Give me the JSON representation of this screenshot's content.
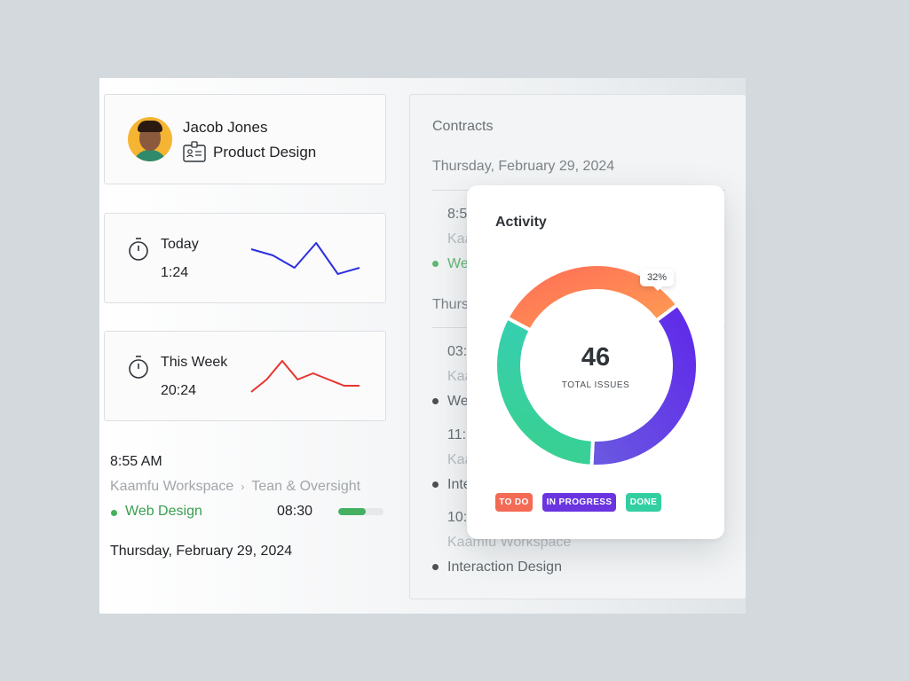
{
  "profile": {
    "name": "Jacob Jones",
    "role": "Product Design"
  },
  "timers": {
    "today": {
      "label": "Today",
      "value": "1:24",
      "color": "#2b2fe0",
      "trend": [
        5,
        4,
        2,
        6,
        1,
        2
      ]
    },
    "week": {
      "label": "This Week",
      "value": "20:24",
      "color": "#e8332e",
      "trend": [
        3,
        5,
        8,
        5,
        6,
        5,
        4,
        4
      ]
    }
  },
  "entry": {
    "time": "8:55 AM",
    "workspace": "Kaamfu Workspace",
    "separator": "›",
    "project": "Tean & Oversight",
    "tag": "Web Design",
    "duration": "08:30",
    "progress_percent": 60,
    "date": "Thursday, February 29, 2024"
  },
  "contracts": {
    "title": "Contracts",
    "date1": "Thursday, February 29, 2024",
    "date2": "Thurs",
    "items": [
      {
        "time": "8:5",
        "group": "Kaa",
        "tag": "We"
      },
      {
        "time": "03:",
        "group": "Kaa",
        "tag": "We"
      },
      {
        "time": "11:",
        "group": "Kaa",
        "tag": "Inte"
      },
      {
        "time": "10:",
        "group": "Kaamfu Workspace",
        "tag": "Interaction Design"
      }
    ]
  },
  "activity": {
    "title": "Activity",
    "total": "46",
    "total_label": "TOTAL ISSUES",
    "badge": "32%",
    "legend": {
      "todo": "TO DO",
      "in_progress": "IN PROGRESS",
      "done": "DONE"
    },
    "colors": {
      "todo": "#f36a55",
      "in_progress": "#6a35e0",
      "done": "#33cfa2"
    }
  },
  "chart_data": {
    "type": "pie",
    "donut": true,
    "center_value": 46,
    "center_label": "TOTAL ISSUES",
    "slices": [
      {
        "name": "TO DO",
        "percent": 32
      },
      {
        "name": "IN PROGRESS",
        "percent": 36
      },
      {
        "name": "DONE",
        "percent": 32
      }
    ]
  }
}
